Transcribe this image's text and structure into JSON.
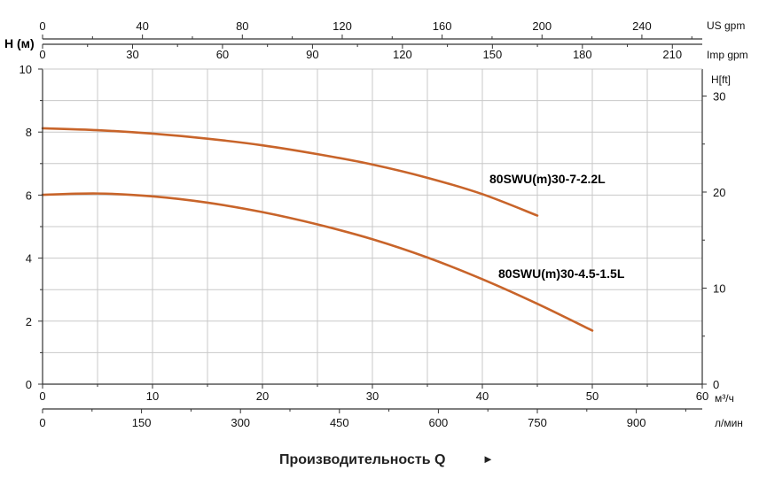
{
  "chart_data": {
    "type": "line",
    "title": "",
    "xlabel": "Производительность Q",
    "xlabel_arrow": "►",
    "ylabel": "H (м)",
    "ylim": [
      0,
      10
    ],
    "xlim": [
      0,
      60
    ],
    "grid": true,
    "y_ticks": [
      "0",
      "2",
      "4",
      "6",
      "8",
      "10"
    ],
    "x_ticks": [
      "0",
      "10",
      "20",
      "30",
      "40",
      "50",
      "60"
    ],
    "x_unit": "м³/ч",
    "colors": {
      "curve": "#c8642a",
      "grid": "#c8c8c8",
      "axis": "#333333"
    },
    "secondary_axes": {
      "right_ft": {
        "label": "H[ft]",
        "ticks": [
          "0",
          "10",
          "20",
          "30"
        ],
        "values": [
          0,
          10,
          20,
          30
        ]
      },
      "top_us": {
        "label": "US gpm",
        "ticks": [
          "0",
          "40",
          "80",
          "120",
          "160",
          "200",
          "240"
        ],
        "values": [
          0,
          40,
          80,
          120,
          160,
          200,
          240
        ]
      },
      "top_imp": {
        "label": "Imp gpm",
        "ticks": [
          "0",
          "30",
          "60",
          "90",
          "120",
          "150",
          "180",
          "210"
        ],
        "values": [
          0,
          30,
          60,
          90,
          120,
          150,
          180,
          210
        ]
      },
      "bottom_lmin": {
        "label": "л/мин",
        "ticks": [
          "0",
          "150",
          "300",
          "450",
          "600",
          "750",
          "900"
        ],
        "values": [
          0,
          150,
          300,
          450,
          600,
          750,
          900
        ]
      }
    },
    "series": [
      {
        "name": "80SWU(m)30-7-2.2L",
        "x": [
          0,
          5,
          10,
          15,
          20,
          25,
          30,
          35,
          40,
          45
        ],
        "y": [
          8.12,
          8.06,
          7.95,
          7.79,
          7.58,
          7.3,
          6.97,
          6.55,
          6.03,
          5.35
        ]
      },
      {
        "name": "80SWU(m)30-4.5-1.5L",
        "x": [
          0,
          5,
          10,
          15,
          20,
          25,
          30,
          35,
          40,
          45,
          50
        ],
        "y": [
          6.01,
          6.05,
          5.96,
          5.76,
          5.46,
          5.07,
          4.6,
          4.02,
          3.33,
          2.55,
          1.7
        ]
      }
    ]
  }
}
